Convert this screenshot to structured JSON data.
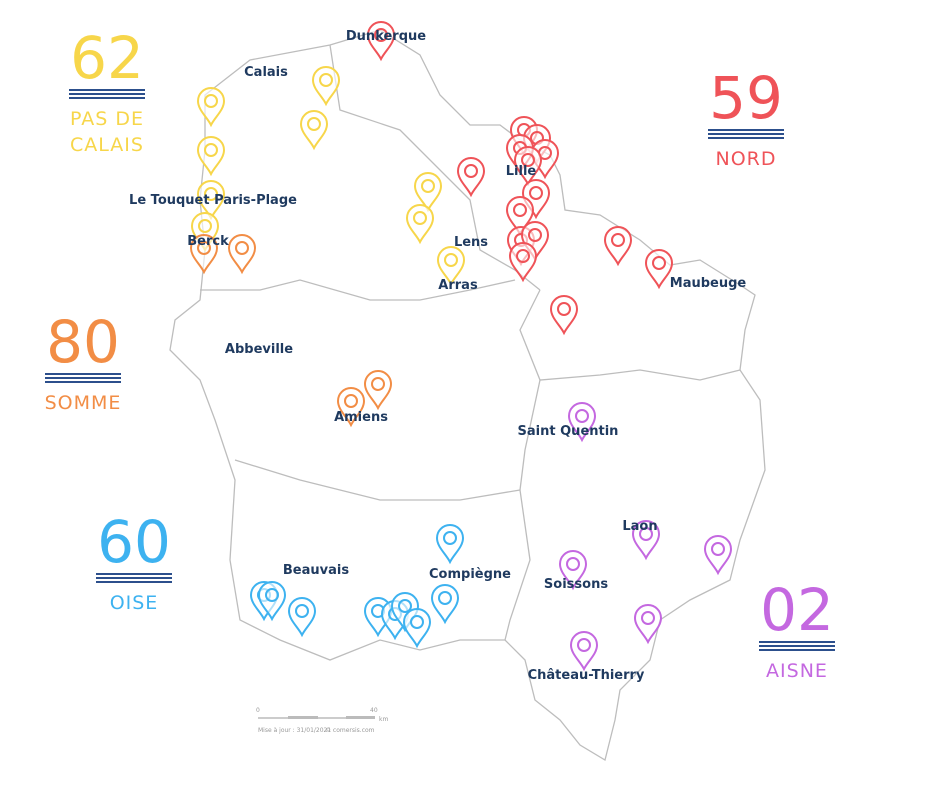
{
  "departments": [
    {
      "number": "62",
      "name": [
        "PAS DE",
        "CALAIS"
      ]
    },
    {
      "number": "59",
      "name": [
        "NORD"
      ]
    },
    {
      "number": "80",
      "name": [
        "SOMME"
      ]
    },
    {
      "number": "60",
      "name": [
        "OISE"
      ]
    },
    {
      "number": "02",
      "name": [
        "AISNE"
      ]
    }
  ],
  "cities": [
    "Dunkerque",
    "Calais",
    "Lille",
    "Le Touquet Paris-Plage",
    "Berck",
    "Lens",
    "Arras",
    "Maubeuge",
    "Abbeville",
    "Amiens",
    "Saint Quentin",
    "Laon",
    "Beauvais",
    "Compiègne",
    "Soissons",
    "Château-Thierry"
  ],
  "scale": {
    "start": "0",
    "end": "40",
    "unit": "km",
    "updated": "Mise à jour : 31/01/2021",
    "credit": "© comersis.com"
  }
}
